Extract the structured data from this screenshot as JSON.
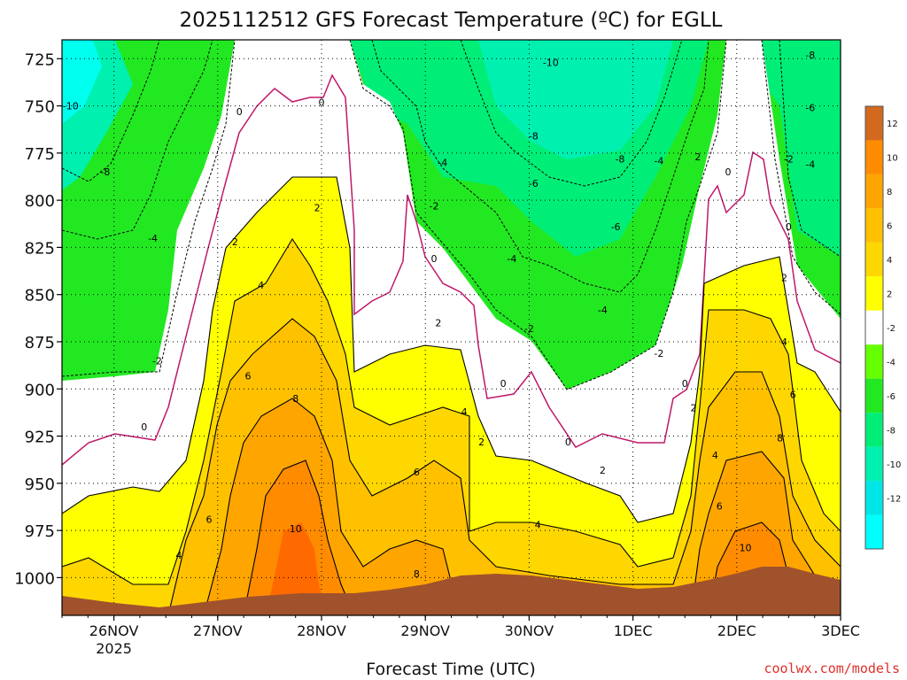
{
  "chart_data": {
    "type": "heatmap",
    "title": "2025112512 GFS Forecast Temperature (ºC) for EGLL",
    "xlabel": "Forecast Time (UTC)",
    "ylabel": "",
    "credit": "coolwx.com/models",
    "y_ticks": [
      "725",
      "750",
      "775",
      "800",
      "825",
      "850",
      "875",
      "900",
      "925",
      "950",
      "975",
      "1000"
    ],
    "y_values": [
      725,
      750,
      775,
      800,
      825,
      850,
      875,
      900,
      925,
      950,
      975,
      1000
    ],
    "ylim": [
      1020,
      715
    ],
    "x_ticks": [
      {
        "label": "26NOV",
        "sub": "2025",
        "value": 12
      },
      {
        "label": "27NOV",
        "value": 36
      },
      {
        "label": "28NOV",
        "value": 60
      },
      {
        "label": "29NOV",
        "value": 84
      },
      {
        "label": "30NOV",
        "value": 108
      },
      {
        "label": "1DEC",
        "value": 132
      },
      {
        "label": "2DEC",
        "value": 156
      },
      {
        "label": "3DEC",
        "value": 180
      }
    ],
    "xlim": [
      0,
      180
    ],
    "colorbar": {
      "labels": [
        "12",
        "10",
        "8",
        "6",
        "4",
        "2",
        "-2",
        "-4",
        "-6",
        "-8",
        "-10",
        "-12"
      ],
      "colors": [
        "#d2691e",
        "#ff8c00",
        "#ffa500",
        "#ffc000",
        "#ffd700",
        "#ffff00",
        "#ffffff",
        "#66ff00",
        "#22e822",
        "#00ee77",
        "#00f0b0",
        "#00e6e6",
        "#00ffff"
      ]
    },
    "contour_labels": [
      {
        "text": "-10",
        "x": 2,
        "p": 750
      },
      {
        "text": "-8",
        "x": 10,
        "p": 785
      },
      {
        "text": "-4",
        "x": 21,
        "p": 820
      },
      {
        "text": "-2",
        "x": 22,
        "p": 885
      },
      {
        "text": "0",
        "x": 19,
        "p": 920
      },
      {
        "text": "0",
        "x": 41,
        "p": 753
      },
      {
        "text": "0",
        "x": 60,
        "p": 748
      },
      {
        "text": "2",
        "x": 40,
        "p": 822
      },
      {
        "text": "4",
        "x": 46,
        "p": 845
      },
      {
        "text": "6",
        "x": 43,
        "p": 893
      },
      {
        "text": "2",
        "x": 59,
        "p": 804
      },
      {
        "text": "8",
        "x": 54,
        "p": 905
      },
      {
        "text": "6",
        "x": 34,
        "p": 969
      },
      {
        "text": "4",
        "x": 27,
        "p": 988
      },
      {
        "text": "10",
        "x": 54,
        "p": 974
      },
      {
        "text": "-4",
        "x": 88,
        "p": 780
      },
      {
        "text": "-2",
        "x": 86,
        "p": 803
      },
      {
        "text": "0",
        "x": 86,
        "p": 831
      },
      {
        "text": "2",
        "x": 87,
        "p": 865
      },
      {
        "text": "4",
        "x": 93,
        "p": 912
      },
      {
        "text": "6",
        "x": 82,
        "p": 944
      },
      {
        "text": "2",
        "x": 97,
        "p": 928
      },
      {
        "text": "8",
        "x": 82,
        "p": 998
      },
      {
        "text": "-10",
        "x": 113,
        "p": 727
      },
      {
        "text": "-8",
        "x": 109,
        "p": 766
      },
      {
        "text": "-6",
        "x": 109,
        "p": 791
      },
      {
        "text": "-4",
        "x": 104,
        "p": 831
      },
      {
        "text": "-2",
        "x": 108,
        "p": 868
      },
      {
        "text": "0",
        "x": 102,
        "p": 897
      },
      {
        "text": "0",
        "x": 117,
        "p": 928
      },
      {
        "text": "4",
        "x": 110,
        "p": 972
      },
      {
        "text": "2",
        "x": 125,
        "p": 943
      },
      {
        "text": "-6",
        "x": 128,
        "p": 814
      },
      {
        "text": "-4",
        "x": 125,
        "p": 858
      },
      {
        "text": "-8",
        "x": 129,
        "p": 778
      },
      {
        "text": "-4",
        "x": 138,
        "p": 779
      },
      {
        "text": "-2",
        "x": 138,
        "p": 881
      },
      {
        "text": "2",
        "x": 147,
        "p": 777
      },
      {
        "text": "0",
        "x": 154,
        "p": 785
      },
      {
        "text": "0",
        "x": 144,
        "p": 897
      },
      {
        "text": "2",
        "x": 146,
        "p": 910
      },
      {
        "text": "4",
        "x": 151,
        "p": 935
      },
      {
        "text": "6",
        "x": 152,
        "p": 962
      },
      {
        "text": "8",
        "x": 166,
        "p": 926
      },
      {
        "text": "10",
        "x": 158,
        "p": 984
      },
      {
        "text": "-8",
        "x": 173,
        "p": 723
      },
      {
        "text": "-6",
        "x": 173,
        "p": 751
      },
      {
        "text": "-2",
        "x": 168,
        "p": 778
      },
      {
        "text": "-4",
        "x": 173,
        "p": 781
      },
      {
        "text": "0",
        "x": 168,
        "p": 814
      },
      {
        "text": "2",
        "x": 167,
        "p": 841
      },
      {
        "text": "4",
        "x": 167,
        "p": 875
      },
      {
        "text": "6",
        "x": 169,
        "p": 903
      }
    ]
  }
}
